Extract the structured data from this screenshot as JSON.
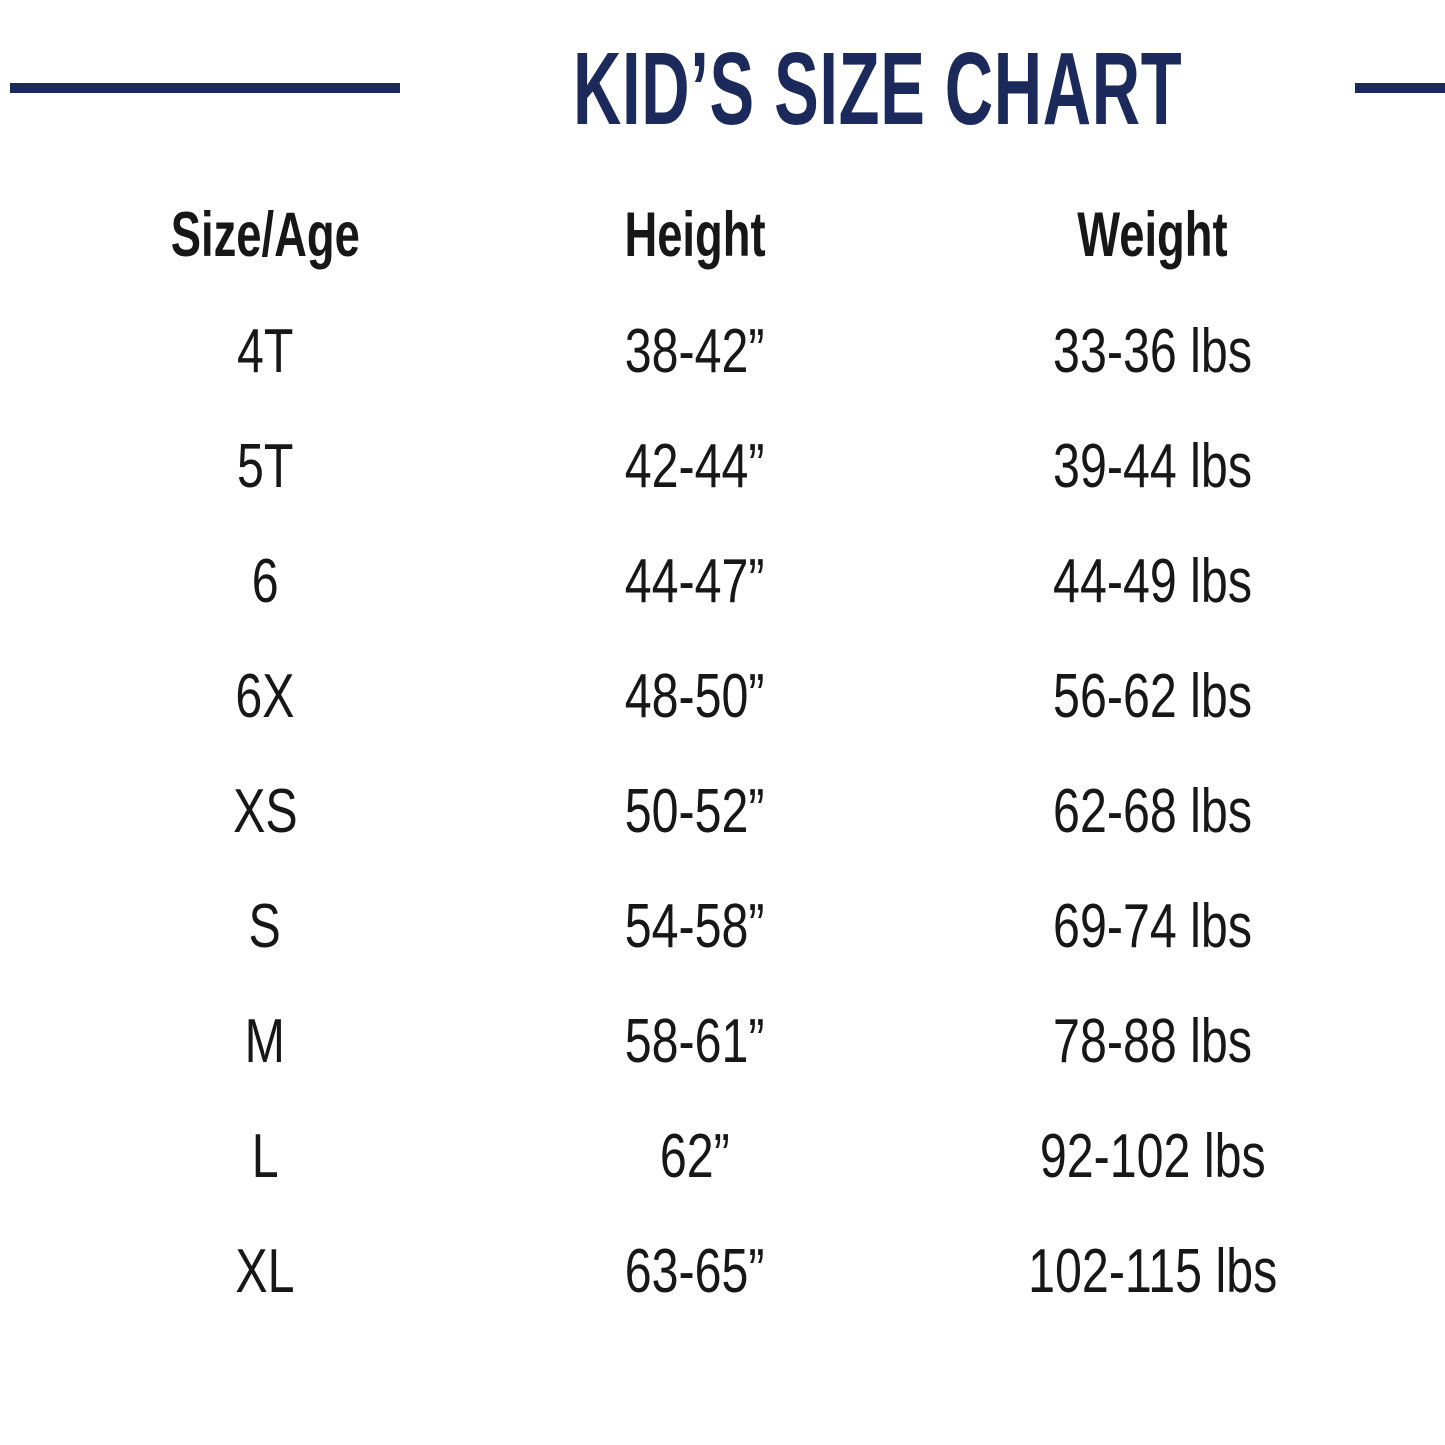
{
  "title": "KID’S SIZE CHART",
  "colors": {
    "navy": "#1b2a5a",
    "text": "#171717",
    "background": "#ffffff"
  },
  "table": {
    "headers": [
      "Size/Age",
      "Height",
      "Weight"
    ],
    "rows": [
      [
        "4T",
        "38-42”",
        "33-36 lbs"
      ],
      [
        "5T",
        "42-44”",
        "39-44 lbs"
      ],
      [
        "6",
        "44-47”",
        "44-49 lbs"
      ],
      [
        "6X",
        "48-50”",
        "56-62 lbs"
      ],
      [
        "XS",
        "50-52”",
        "62-68 lbs"
      ],
      [
        "S",
        "54-58”",
        "69-74 lbs"
      ],
      [
        "M",
        "58-61”",
        "78-88 lbs"
      ],
      [
        "L",
        "62”",
        "92-102 lbs"
      ],
      [
        "XL",
        "63-65”",
        "102-115 lbs"
      ]
    ]
  },
  "chart_data": {
    "type": "table",
    "title": "KID’S SIZE CHART",
    "columns": [
      "Size/Age",
      "Height",
      "Weight"
    ],
    "rows": [
      {
        "size_age": "4T",
        "height": "38-42”",
        "weight": "33-36 lbs"
      },
      {
        "size_age": "5T",
        "height": "42-44”",
        "weight": "39-44 lbs"
      },
      {
        "size_age": "6",
        "height": "44-47”",
        "weight": "44-49 lbs"
      },
      {
        "size_age": "6X",
        "height": "48-50”",
        "weight": "56-62 lbs"
      },
      {
        "size_age": "XS",
        "height": "50-52”",
        "weight": "62-68 lbs"
      },
      {
        "size_age": "S",
        "height": "54-58”",
        "weight": "69-74 lbs"
      },
      {
        "size_age": "M",
        "height": "58-61”",
        "weight": "78-88 lbs"
      },
      {
        "size_age": "L",
        "height": "62”",
        "weight": "92-102 lbs"
      },
      {
        "size_age": "XL",
        "height": "63-65”",
        "weight": "102-115 lbs"
      }
    ]
  }
}
